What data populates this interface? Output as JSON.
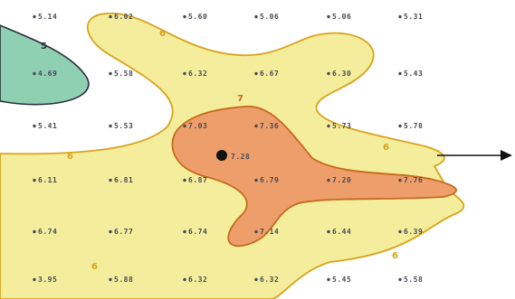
{
  "map": {
    "colors": {
      "background": "#ffffff",
      "zone_5": "#8fd0b2",
      "zone_5_line": "#2b2e3a",
      "zone_6": "#f4ee9c",
      "zone_6_line": "#d9a21c",
      "zone_7": "#ee9e6a",
      "zone_7_line": "#c66a1c",
      "station_text": "#4a4a55"
    },
    "contour_labels": [
      {
        "id": "5",
        "text": "5"
      },
      {
        "id": "7",
        "text": "7"
      },
      {
        "id": "6",
        "text": "6"
      }
    ],
    "stations": [
      {
        "value": "5.14",
        "row": 0,
        "col": 0
      },
      {
        "value": "6.02",
        "row": 0,
        "col": 1
      },
      {
        "value": "5.60",
        "row": 0,
        "col": 2
      },
      {
        "value": "5.06",
        "row": 0,
        "col": 3
      },
      {
        "value": "5.06",
        "row": 0,
        "col": 4
      },
      {
        "value": "5.31",
        "row": 0,
        "col": 5
      },
      {
        "value": "4.69",
        "row": 1,
        "col": 0
      },
      {
        "value": "5.58",
        "row": 1,
        "col": 1
      },
      {
        "value": "6.32",
        "row": 1,
        "col": 2
      },
      {
        "value": "6.67",
        "row": 1,
        "col": 3
      },
      {
        "value": "6.30",
        "row": 1,
        "col": 4
      },
      {
        "value": "5.43",
        "row": 1,
        "col": 5
      },
      {
        "value": "5.41",
        "row": 2,
        "col": 0
      },
      {
        "value": "5.53",
        "row": 2,
        "col": 1
      },
      {
        "value": "7.03",
        "row": 2,
        "col": 2
      },
      {
        "value": "7.36",
        "row": 2,
        "col": 3
      },
      {
        "value": "5.73",
        "row": 2,
        "col": 4
      },
      {
        "value": "5.78",
        "row": 2,
        "col": 5
      },
      {
        "value": "6.11",
        "row": 3,
        "col": 0
      },
      {
        "value": "6.81",
        "row": 3,
        "col": 1
      },
      {
        "value": "6.87",
        "row": 3,
        "col": 2
      },
      {
        "value": "6.79",
        "row": 3,
        "col": 3
      },
      {
        "value": "7.20",
        "row": 3,
        "col": 4
      },
      {
        "value": "7.76",
        "row": 3,
        "col": 5
      },
      {
        "value": "6.74",
        "row": 4,
        "col": 0
      },
      {
        "value": "6.77",
        "row": 4,
        "col": 1
      },
      {
        "value": "6.74",
        "row": 4,
        "col": 2
      },
      {
        "value": "7.14",
        "row": 4,
        "col": 3
      },
      {
        "value": "6.44",
        "row": 4,
        "col": 4
      },
      {
        "value": "6.39",
        "row": 4,
        "col": 5
      },
      {
        "value": "3.95",
        "row": 5,
        "col": 0
      },
      {
        "value": "5.88",
        "row": 5,
        "col": 1
      },
      {
        "value": "6.32",
        "row": 5,
        "col": 2
      },
      {
        "value": "6.32",
        "row": 5,
        "col": 3
      },
      {
        "value": "5.45",
        "row": 5,
        "col": 4
      },
      {
        "value": "5.58",
        "row": 5,
        "col": 5
      }
    ],
    "interpolated_point": {
      "value": "7.28"
    },
    "direction_arrow": {
      "icon": "arrow-right-icon"
    }
  }
}
